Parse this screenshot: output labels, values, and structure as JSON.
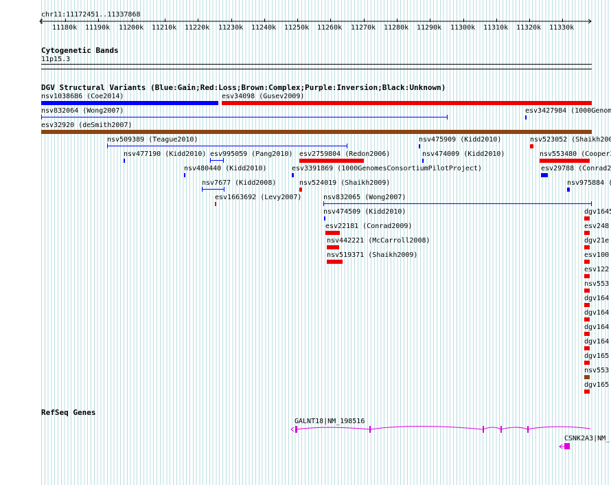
{
  "ruler": {
    "location": "chr11:11172451..11337868",
    "ticks": [
      "11180k",
      "11190k",
      "11200k",
      "11210k",
      "11220k",
      "11230k",
      "11240k",
      "11250k",
      "11260k",
      "11270k",
      "11280k",
      "11290k",
      "11300k",
      "11310k",
      "11320k",
      "11330k"
    ]
  },
  "cytoband": {
    "title": "Cytogenetic Bands",
    "band": "11p15.3"
  },
  "dgv": {
    "title": "DGV Structural Variants (Blue:Gain;Red:Loss;Brown:Complex;Purple:Inversion;Black:Unknown)",
    "colors": {
      "gain": "#0000ff",
      "loss": "#ee0000",
      "complex": "#8b4513",
      "inversion": "#800080"
    },
    "labels": [
      "nsv1038686 (Coe2014)",
      "esv34098 (Gusev2009)",
      "nsv832064 (Wong2007)",
      "esv3427984 (1000Genom",
      "esv32920 (deSmith2007)",
      "nsv509389 (Teague2010)",
      "nsv475909 (Kidd2010)",
      "nsv523052 (Shaikh200",
      "nsv477190 (Kidd2010)",
      "esv995059 (Pang2010)",
      "esv2759804 (Redon2006)",
      "nsv474009 (Kidd2010)",
      "nsv553480 (Cooper2",
      "nsv480440 (Kidd2010)",
      "esv3391869 (1000GenomesConsortiumPilotProject)",
      "esv29788 (Conrad2",
      "nsv7677 (Kidd2008)",
      "nsv524019 (Shaikh2009)",
      "nsv975884 (",
      "esv1663692 (Levy2007)",
      "nsv832065 (Wong2007)",
      "nsv474509 (Kidd2010)",
      "esv22181 (Conrad2009)",
      "nsv442221 (McCarroll2008)",
      "nsv519371 (Shaikh2009)"
    ],
    "right_column": [
      "dgv1645",
      "esv248",
      "dgv21e",
      "esv100",
      "esv122",
      "nsv553",
      "dgv164",
      "dgv164",
      "dgv164",
      "dgv164",
      "dgv165",
      "nsv553",
      "dgv165"
    ]
  },
  "refseq": {
    "title": "RefSeq Genes",
    "genes": [
      "GALNT18|NM_198516",
      "CSNK2A3|NM_("
    ],
    "gene_color": "#dd00dd"
  }
}
